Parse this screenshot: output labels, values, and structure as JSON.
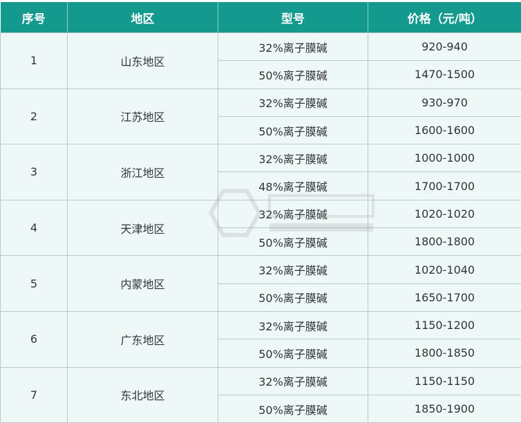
{
  "header": {
    "index": "序号",
    "region": "地区",
    "model": "型号",
    "price": "价格（元/吨）"
  },
  "rows": [
    {
      "index": "1",
      "region": "山东地区",
      "items": [
        {
          "model": "32%离子膜碱",
          "price": "920-940"
        },
        {
          "model": "50%离子膜碱",
          "price": "1470-1500"
        }
      ]
    },
    {
      "index": "2",
      "region": "江苏地区",
      "items": [
        {
          "model": "32%离子膜碱",
          "price": "930-970"
        },
        {
          "model": "50%离子膜碱",
          "price": "1600-1600"
        }
      ]
    },
    {
      "index": "3",
      "region": "浙江地区",
      "items": [
        {
          "model": "32%离子膜碱",
          "price": "1000-1000"
        },
        {
          "model": "48%离子膜碱",
          "price": "1700-1700"
        }
      ]
    },
    {
      "index": "4",
      "region": "天津地区",
      "items": [
        {
          "model": "32%离子膜碱",
          "price": "1020-1020"
        },
        {
          "model": "50%离子膜碱",
          "price": "1800-1800"
        }
      ]
    },
    {
      "index": "5",
      "region": "内蒙地区",
      "items": [
        {
          "model": "32%离子膜碱",
          "price": "1020-1040"
        },
        {
          "model": "50%离子膜碱",
          "price": "1650-1700"
        }
      ]
    },
    {
      "index": "6",
      "region": "广东地区",
      "items": [
        {
          "model": "32%离子膜碱",
          "price": "1150-1200"
        },
        {
          "model": "50%离子膜碱",
          "price": "1800-1850"
        }
      ]
    },
    {
      "index": "7",
      "region": "东北地区",
      "items": [
        {
          "model": "32%离子膜碱",
          "price": "1150-1150"
        },
        {
          "model": "50%离子膜碱",
          "price": "1850-1900"
        }
      ]
    }
  ],
  "colors": {
    "header_bg": "#14998f",
    "cell_bg": "#eef8f7"
  }
}
